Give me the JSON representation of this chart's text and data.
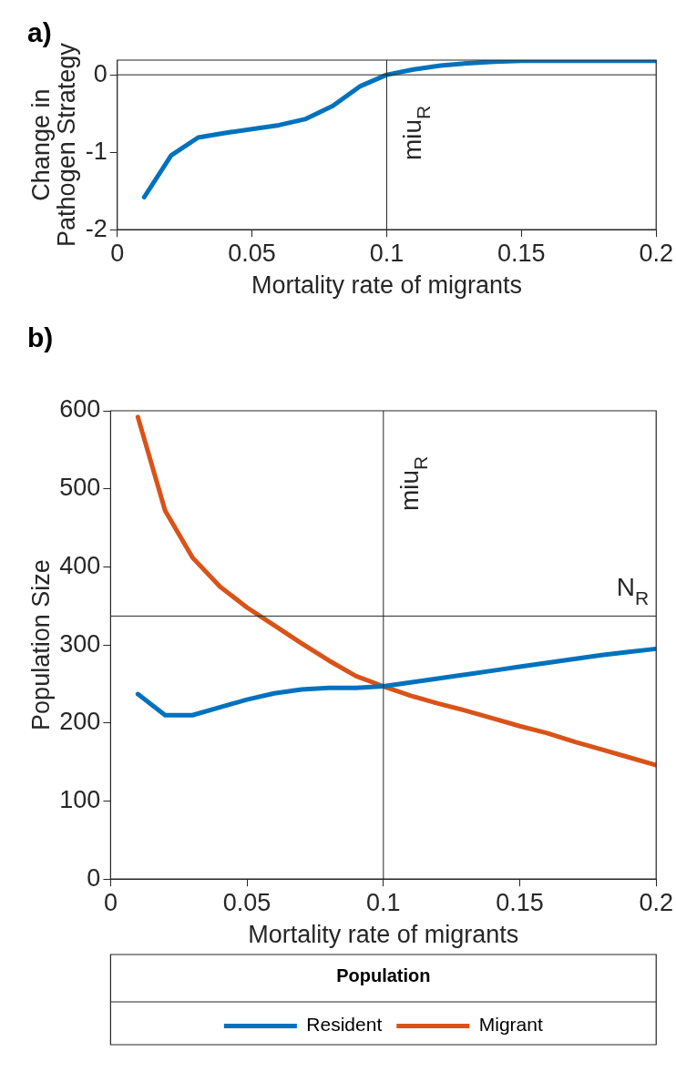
{
  "chart_data": [
    {
      "type": "line",
      "title": "a)",
      "xlabel": "Mortality rate of migrants",
      "ylabel": "Change in\nPathogen Strategy",
      "x": [
        0.01,
        0.02,
        0.03,
        0.04,
        0.05,
        0.06,
        0.07,
        0.08,
        0.09,
        0.1,
        0.11,
        0.12,
        0.13,
        0.14,
        0.15,
        0.16,
        0.17,
        0.18,
        0.19,
        0.2
      ],
      "series": [
        {
          "color": "#0072bd",
          "values": [
            -1.58,
            -1.04,
            -0.81,
            -0.75,
            -0.7,
            -0.65,
            -0.57,
            -0.4,
            -0.15,
            0,
            0.07,
            0.12,
            0.15,
            0.17,
            0.18,
            0.18,
            0.18,
            0.18,
            0.18,
            0.18
          ]
        }
      ],
      "xlim": [
        0,
        0.2
      ],
      "xticks": [
        0,
        0.05,
        0.1,
        0.15,
        0.2
      ],
      "ylim": [
        -2,
        0.19
      ],
      "yticks": [
        -2,
        -1,
        0
      ],
      "ref_lines": [
        {
          "axis": "x",
          "value": 0.1,
          "label": "miu$_{R}$",
          "color": "#262626"
        },
        {
          "axis": "y",
          "value": 0,
          "color": "#262626"
        }
      ],
      "grid": false,
      "legend": false,
      "marker": "none",
      "line_style": "solid"
    },
    {
      "type": "line",
      "title": "b)",
      "xlabel": "Mortality rate of migrants",
      "ylabel": "Population Size",
      "legend_title": "Population",
      "x": [
        0.01,
        0.02,
        0.03,
        0.04,
        0.05,
        0.06,
        0.07,
        0.08,
        0.09,
        0.1,
        0.11,
        0.12,
        0.13,
        0.14,
        0.15,
        0.16,
        0.17,
        0.18,
        0.19,
        0.2
      ],
      "series": [
        {
          "name": "Resident",
          "color": "#0072bd",
          "values": [
            237,
            210,
            210,
            220,
            230,
            238,
            243,
            245,
            245,
            247,
            252,
            257,
            262,
            267,
            272,
            277,
            282,
            287,
            291,
            295
          ]
        },
        {
          "name": "Migrant",
          "color": "#d95319",
          "values": [
            592,
            472,
            412,
            375,
            348,
            325,
            302,
            280,
            260,
            247,
            235,
            225,
            216,
            206,
            196,
            187,
            176,
            166,
            156,
            146
          ]
        }
      ],
      "xlim": [
        0,
        0.2
      ],
      "xticks": [
        0,
        0.05,
        0.1,
        0.15,
        0.2
      ],
      "ylim": [
        0,
        600
      ],
      "yticks": [
        0,
        100,
        200,
        300,
        400,
        500,
        600
      ],
      "ref_lines": [
        {
          "axis": "x",
          "value": 0.1,
          "label": "miu$_{R}$",
          "color": "#262626"
        },
        {
          "axis": "y",
          "value": 337,
          "label": "N$_{R}$",
          "color": "#262626"
        }
      ],
      "grid": false,
      "legend": "bottom",
      "marker": "none",
      "line_style": "solid"
    }
  ]
}
